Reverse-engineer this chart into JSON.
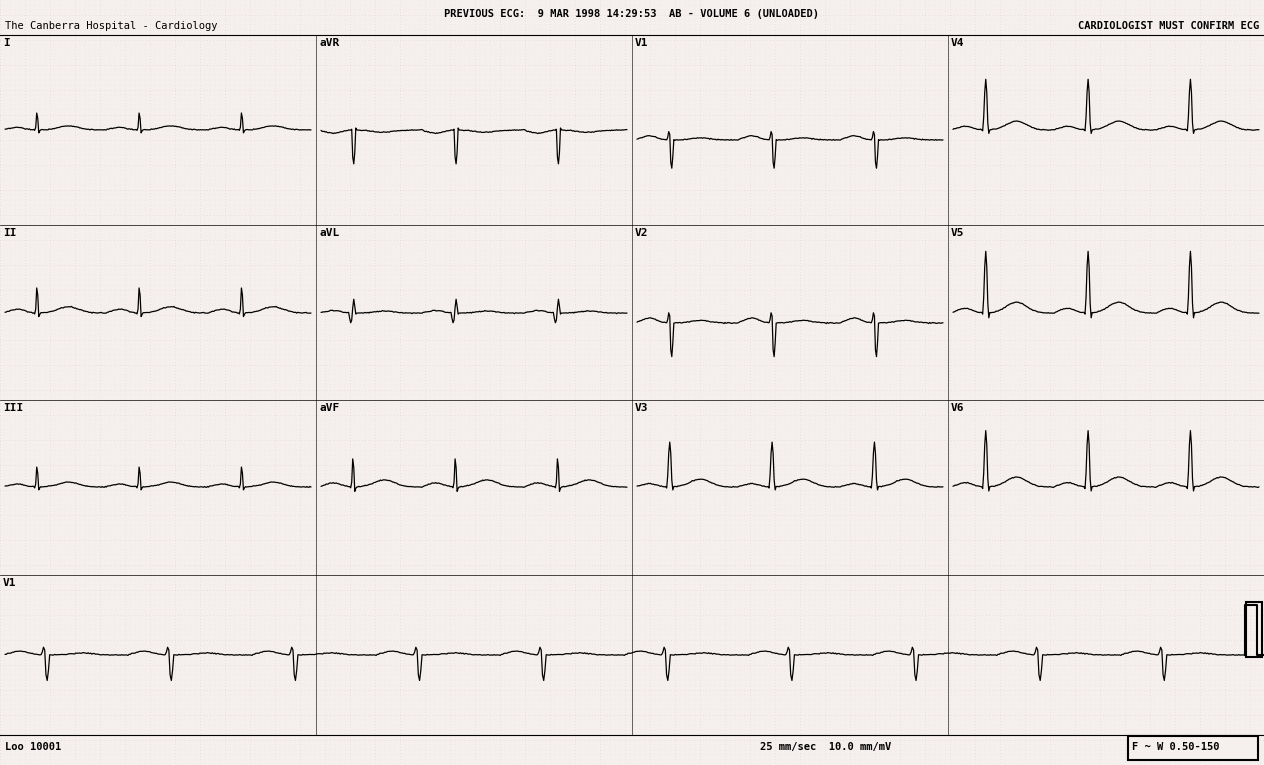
{
  "title_line1": "PREVIOUS ECG:  9 MAR 1998 14:29:53  AB - VOLUME 6 (UNLOADED)",
  "title_line2": "The Canberra Hospital - Cardiology",
  "title_right": "CARDIOLOGIST MUST CONFIRM ECG",
  "bottom_left": "Loo 10001",
  "bottom_mid": "25 mm/sec  10.0 mm/mV",
  "bottom_right": "F ~ W 0.50-150",
  "paper_color": "#f5f0ee",
  "grid_minor_color": "#c0b0a8",
  "grid_major_color": "#c0b0a8",
  "ecg_color": "#000000",
  "text_color": "#000000",
  "row_labels_r1": [
    "I",
    "aVR",
    "V1",
    "V4"
  ],
  "row_labels_r2": [
    "II",
    "aVL",
    "V2",
    "V5"
  ],
  "row_labels_r3": [
    "III",
    "aVF",
    "V3",
    "V6"
  ],
  "row_label_r4": "V1"
}
